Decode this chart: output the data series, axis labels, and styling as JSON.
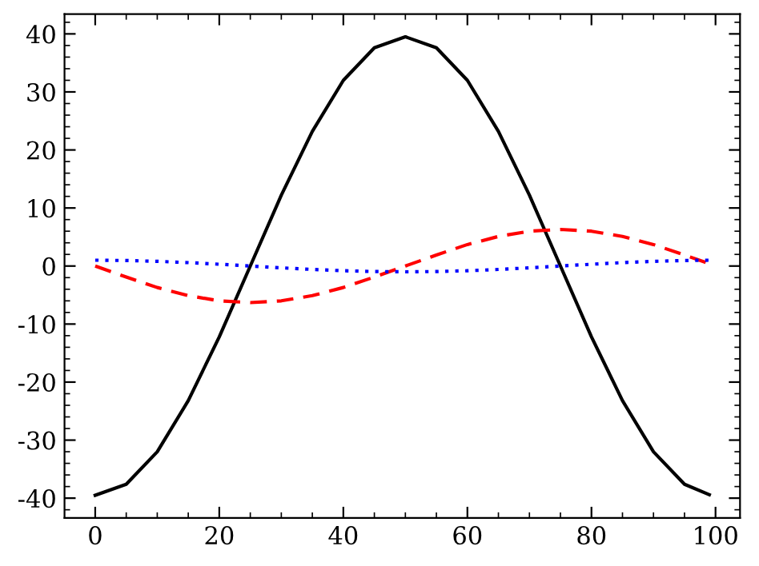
{
  "chart_data": {
    "type": "line",
    "x": [
      0,
      5,
      10,
      15,
      20,
      25,
      30,
      35,
      40,
      45,
      50,
      55,
      60,
      65,
      70,
      75,
      80,
      85,
      90,
      95,
      99
    ],
    "series": [
      {
        "color": "#000000",
        "line_style": "solid",
        "values": [
          -39.5,
          -37.6,
          -32,
          -23.2,
          -12.2,
          0,
          12.2,
          23.2,
          32,
          37.6,
          39.5,
          37.6,
          32,
          23.2,
          12.2,
          0,
          -12.2,
          -23.2,
          -32,
          -37.6,
          -39.4
        ]
      },
      {
        "color": "#ff0000",
        "line_style": "dashed",
        "values": [
          0,
          -1.9,
          -3.7,
          -5.1,
          -6,
          -6.3,
          -6,
          -5.1,
          -3.7,
          -1.9,
          0,
          1.9,
          3.7,
          5.1,
          6,
          6.3,
          6,
          5.1,
          3.7,
          1.9,
          0.4
        ]
      },
      {
        "color": "#0000ff",
        "line_style": "dotted",
        "values": [
          1,
          0.95,
          0.81,
          0.59,
          0.31,
          0,
          -0.31,
          -0.59,
          -0.81,
          -0.95,
          -1,
          -0.95,
          -0.81,
          -0.59,
          -0.31,
          0,
          0.31,
          0.59,
          0.81,
          0.95,
          1
        ]
      }
    ],
    "xlim": [
      -4.95,
      103.95
    ],
    "ylim": [
      -43.4,
      43.4
    ],
    "xticks": [
      0,
      20,
      40,
      60,
      80,
      100
    ],
    "yticks": [
      -40,
      -30,
      -20,
      -10,
      0,
      10,
      20,
      30,
      40
    ],
    "grid": false,
    "legend": false,
    "marker": "none"
  }
}
